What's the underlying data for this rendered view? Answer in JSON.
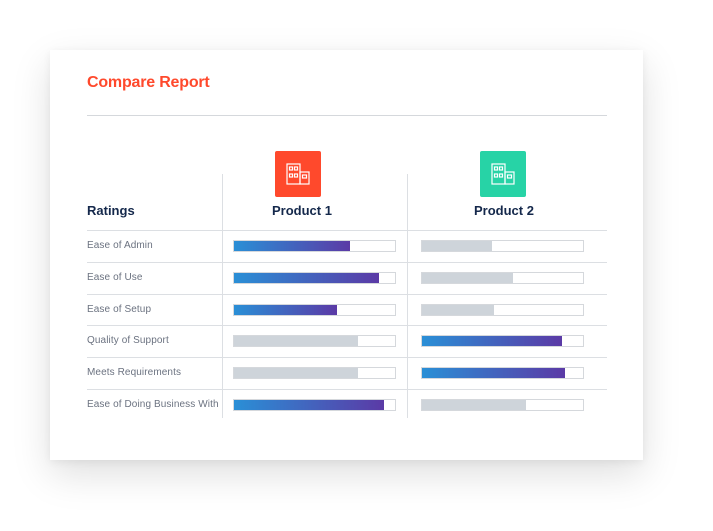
{
  "report": {
    "title": "Compare Report",
    "ratings_header": "Ratings"
  },
  "products": [
    {
      "name": "Product 1",
      "icon": "building-icon",
      "color": "#ff492c"
    },
    {
      "name": "Product 2",
      "icon": "building-icon",
      "color": "#27d3a6"
    }
  ],
  "colors": {
    "accent": "#ff492c",
    "header_text": "#14284b",
    "bar_gradient_start": "#2a8fd6",
    "bar_gradient_end": "#5b3aa6",
    "bar_neutral": "#ced4da"
  },
  "rows": [
    {
      "label": "Ease of Admin",
      "p1": 0.71,
      "p2": 0.43,
      "highlight": "p1"
    },
    {
      "label": "Ease of Use",
      "p1": 0.89,
      "p2": 0.56,
      "highlight": "p1"
    },
    {
      "label": "Ease of Setup",
      "p1": 0.63,
      "p2": 0.44,
      "highlight": "p1"
    },
    {
      "label": "Quality of Support",
      "p1": 0.76,
      "p2": 0.86,
      "highlight": "p2"
    },
    {
      "label": "Meets Requirements",
      "p1": 0.76,
      "p2": 0.88,
      "highlight": "p2"
    },
    {
      "label": "Ease of Doing Business With",
      "p1": 0.92,
      "p2": 0.64,
      "highlight": "p1"
    }
  ]
}
